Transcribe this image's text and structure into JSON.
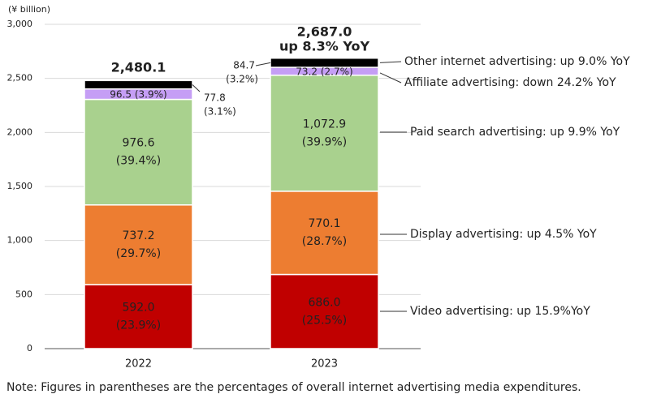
{
  "chart_data": {
    "type": "bar",
    "stacked": true,
    "unit_label": "(¥ billion)",
    "categories": [
      "2022",
      "2023"
    ],
    "ylim": [
      0,
      3000
    ],
    "yticks": [
      "0",
      "500",
      "1,000",
      "1,500",
      "2,000",
      "2,500",
      "3,000"
    ],
    "grid": true,
    "series": [
      {
        "name": "Video advertising",
        "color": "#c00000",
        "values": [
          592.0,
          686.0
        ],
        "labels": [
          "592.0",
          "686.0"
        ],
        "pct": [
          "(23.9%)",
          "(25.5%)"
        ],
        "legend": "Video advertising: up 15.9%YoY"
      },
      {
        "name": "Display advertising",
        "color": "#ed7d31",
        "values": [
          737.2,
          770.1
        ],
        "labels": [
          "737.2",
          "770.1"
        ],
        "pct": [
          "(29.7%)",
          "(28.7%)"
        ],
        "legend": "Display advertising: up 4.5% YoY"
      },
      {
        "name": "Paid search advertising",
        "color": "#a9d18e",
        "values": [
          976.6,
          1072.9
        ],
        "labels": [
          "976.6",
          "1,072.9"
        ],
        "pct": [
          "(39.4%)",
          "(39.9%)"
        ],
        "legend": "Paid search advertising: up 9.9% YoY"
      },
      {
        "name": "Affiliate advertising",
        "color": "#c59ef5",
        "values": [
          96.5,
          73.2
        ],
        "labels": [
          "96.5 (3.9%)",
          "73.2 (2.7%)"
        ],
        "legend": "Affiliate advertising: down 24.2% YoY"
      },
      {
        "name": "Other internet advertising",
        "color": "#000000",
        "values": [
          77.8,
          84.7
        ],
        "labels": [
          "77.8",
          "84.7"
        ],
        "pct": [
          "(3.1%)",
          "(3.2%)"
        ],
        "legend": "Other internet advertising: up 9.0% YoY"
      }
    ],
    "totals": [
      "2,480.1",
      "2,687.0"
    ],
    "total_change": "up 8.3% YoY",
    "note": "Note: Figures in parentheses are the percentages of overall internet advertising media expenditures."
  }
}
